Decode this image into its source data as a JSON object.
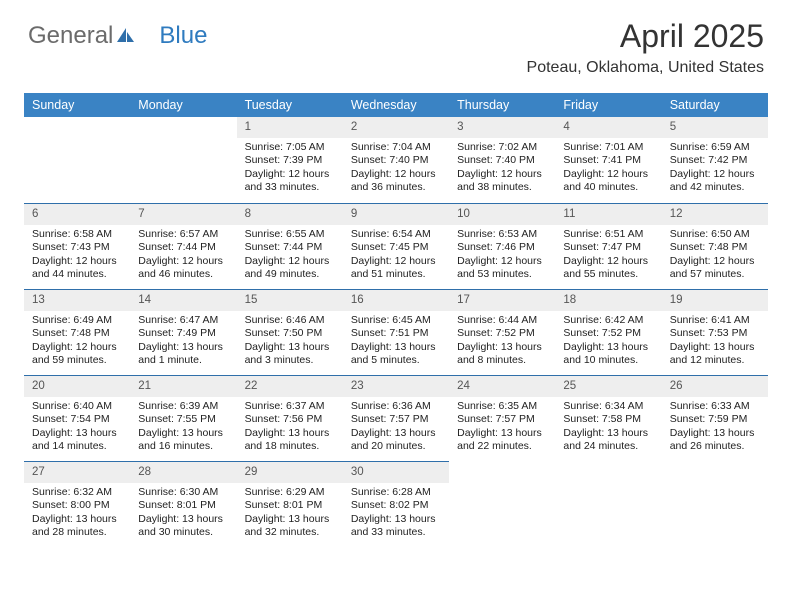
{
  "brand": {
    "part1": "General",
    "part2": "Blue",
    "part1_color": "#6b6b6b",
    "part2_color": "#2f7bbf",
    "icon_color": "#2f6faa"
  },
  "header": {
    "title": "April 2025",
    "location": "Poteau, Oklahoma, United States"
  },
  "styling": {
    "header_bg": "#3a83c4",
    "header_text": "#ffffff",
    "daynum_bg": "#eeeeee",
    "row_divider": "#2f6faa",
    "body_fontsize": 10.5,
    "daynum_fontsize": 11.5,
    "th_fontsize": 12.5,
    "title_fontsize": 32,
    "subtitle_fontsize": 16,
    "page_bg": "#ffffff",
    "text_color": "#222222",
    "columns": 7,
    "weeks": 5
  },
  "day_names": [
    "Sunday",
    "Monday",
    "Tuesday",
    "Wednesday",
    "Thursday",
    "Friday",
    "Saturday"
  ],
  "labels": {
    "sunrise": "Sunrise:",
    "sunset": "Sunset:",
    "daylight": "Daylight:"
  },
  "days": [
    {
      "num": "",
      "sunrise": "",
      "sunset": "",
      "daylight": "",
      "empty": true
    },
    {
      "num": "",
      "sunrise": "",
      "sunset": "",
      "daylight": "",
      "empty": true
    },
    {
      "num": "1",
      "sunrise": "7:05 AM",
      "sunset": "7:39 PM",
      "daylight": "12 hours and 33 minutes."
    },
    {
      "num": "2",
      "sunrise": "7:04 AM",
      "sunset": "7:40 PM",
      "daylight": "12 hours and 36 minutes."
    },
    {
      "num": "3",
      "sunrise": "7:02 AM",
      "sunset": "7:40 PM",
      "daylight": "12 hours and 38 minutes."
    },
    {
      "num": "4",
      "sunrise": "7:01 AM",
      "sunset": "7:41 PM",
      "daylight": "12 hours and 40 minutes."
    },
    {
      "num": "5",
      "sunrise": "6:59 AM",
      "sunset": "7:42 PM",
      "daylight": "12 hours and 42 minutes."
    },
    {
      "num": "6",
      "sunrise": "6:58 AM",
      "sunset": "7:43 PM",
      "daylight": "12 hours and 44 minutes."
    },
    {
      "num": "7",
      "sunrise": "6:57 AM",
      "sunset": "7:44 PM",
      "daylight": "12 hours and 46 minutes."
    },
    {
      "num": "8",
      "sunrise": "6:55 AM",
      "sunset": "7:44 PM",
      "daylight": "12 hours and 49 minutes."
    },
    {
      "num": "9",
      "sunrise": "6:54 AM",
      "sunset": "7:45 PM",
      "daylight": "12 hours and 51 minutes."
    },
    {
      "num": "10",
      "sunrise": "6:53 AM",
      "sunset": "7:46 PM",
      "daylight": "12 hours and 53 minutes."
    },
    {
      "num": "11",
      "sunrise": "6:51 AM",
      "sunset": "7:47 PM",
      "daylight": "12 hours and 55 minutes."
    },
    {
      "num": "12",
      "sunrise": "6:50 AM",
      "sunset": "7:48 PM",
      "daylight": "12 hours and 57 minutes."
    },
    {
      "num": "13",
      "sunrise": "6:49 AM",
      "sunset": "7:48 PM",
      "daylight": "12 hours and 59 minutes."
    },
    {
      "num": "14",
      "sunrise": "6:47 AM",
      "sunset": "7:49 PM",
      "daylight": "13 hours and 1 minute."
    },
    {
      "num": "15",
      "sunrise": "6:46 AM",
      "sunset": "7:50 PM",
      "daylight": "13 hours and 3 minutes."
    },
    {
      "num": "16",
      "sunrise": "6:45 AM",
      "sunset": "7:51 PM",
      "daylight": "13 hours and 5 minutes."
    },
    {
      "num": "17",
      "sunrise": "6:44 AM",
      "sunset": "7:52 PM",
      "daylight": "13 hours and 8 minutes."
    },
    {
      "num": "18",
      "sunrise": "6:42 AM",
      "sunset": "7:52 PM",
      "daylight": "13 hours and 10 minutes."
    },
    {
      "num": "19",
      "sunrise": "6:41 AM",
      "sunset": "7:53 PM",
      "daylight": "13 hours and 12 minutes."
    },
    {
      "num": "20",
      "sunrise": "6:40 AM",
      "sunset": "7:54 PM",
      "daylight": "13 hours and 14 minutes."
    },
    {
      "num": "21",
      "sunrise": "6:39 AM",
      "sunset": "7:55 PM",
      "daylight": "13 hours and 16 minutes."
    },
    {
      "num": "22",
      "sunrise": "6:37 AM",
      "sunset": "7:56 PM",
      "daylight": "13 hours and 18 minutes."
    },
    {
      "num": "23",
      "sunrise": "6:36 AM",
      "sunset": "7:57 PM",
      "daylight": "13 hours and 20 minutes."
    },
    {
      "num": "24",
      "sunrise": "6:35 AM",
      "sunset": "7:57 PM",
      "daylight": "13 hours and 22 minutes."
    },
    {
      "num": "25",
      "sunrise": "6:34 AM",
      "sunset": "7:58 PM",
      "daylight": "13 hours and 24 minutes."
    },
    {
      "num": "26",
      "sunrise": "6:33 AM",
      "sunset": "7:59 PM",
      "daylight": "13 hours and 26 minutes."
    },
    {
      "num": "27",
      "sunrise": "6:32 AM",
      "sunset": "8:00 PM",
      "daylight": "13 hours and 28 minutes."
    },
    {
      "num": "28",
      "sunrise": "6:30 AM",
      "sunset": "8:01 PM",
      "daylight": "13 hours and 30 minutes."
    },
    {
      "num": "29",
      "sunrise": "6:29 AM",
      "sunset": "8:01 PM",
      "daylight": "13 hours and 32 minutes."
    },
    {
      "num": "30",
      "sunrise": "6:28 AM",
      "sunset": "8:02 PM",
      "daylight": "13 hours and 33 minutes."
    },
    {
      "num": "",
      "sunrise": "",
      "sunset": "",
      "daylight": "",
      "empty": true
    },
    {
      "num": "",
      "sunrise": "",
      "sunset": "",
      "daylight": "",
      "empty": true
    },
    {
      "num": "",
      "sunrise": "",
      "sunset": "",
      "daylight": "",
      "empty": true
    }
  ]
}
